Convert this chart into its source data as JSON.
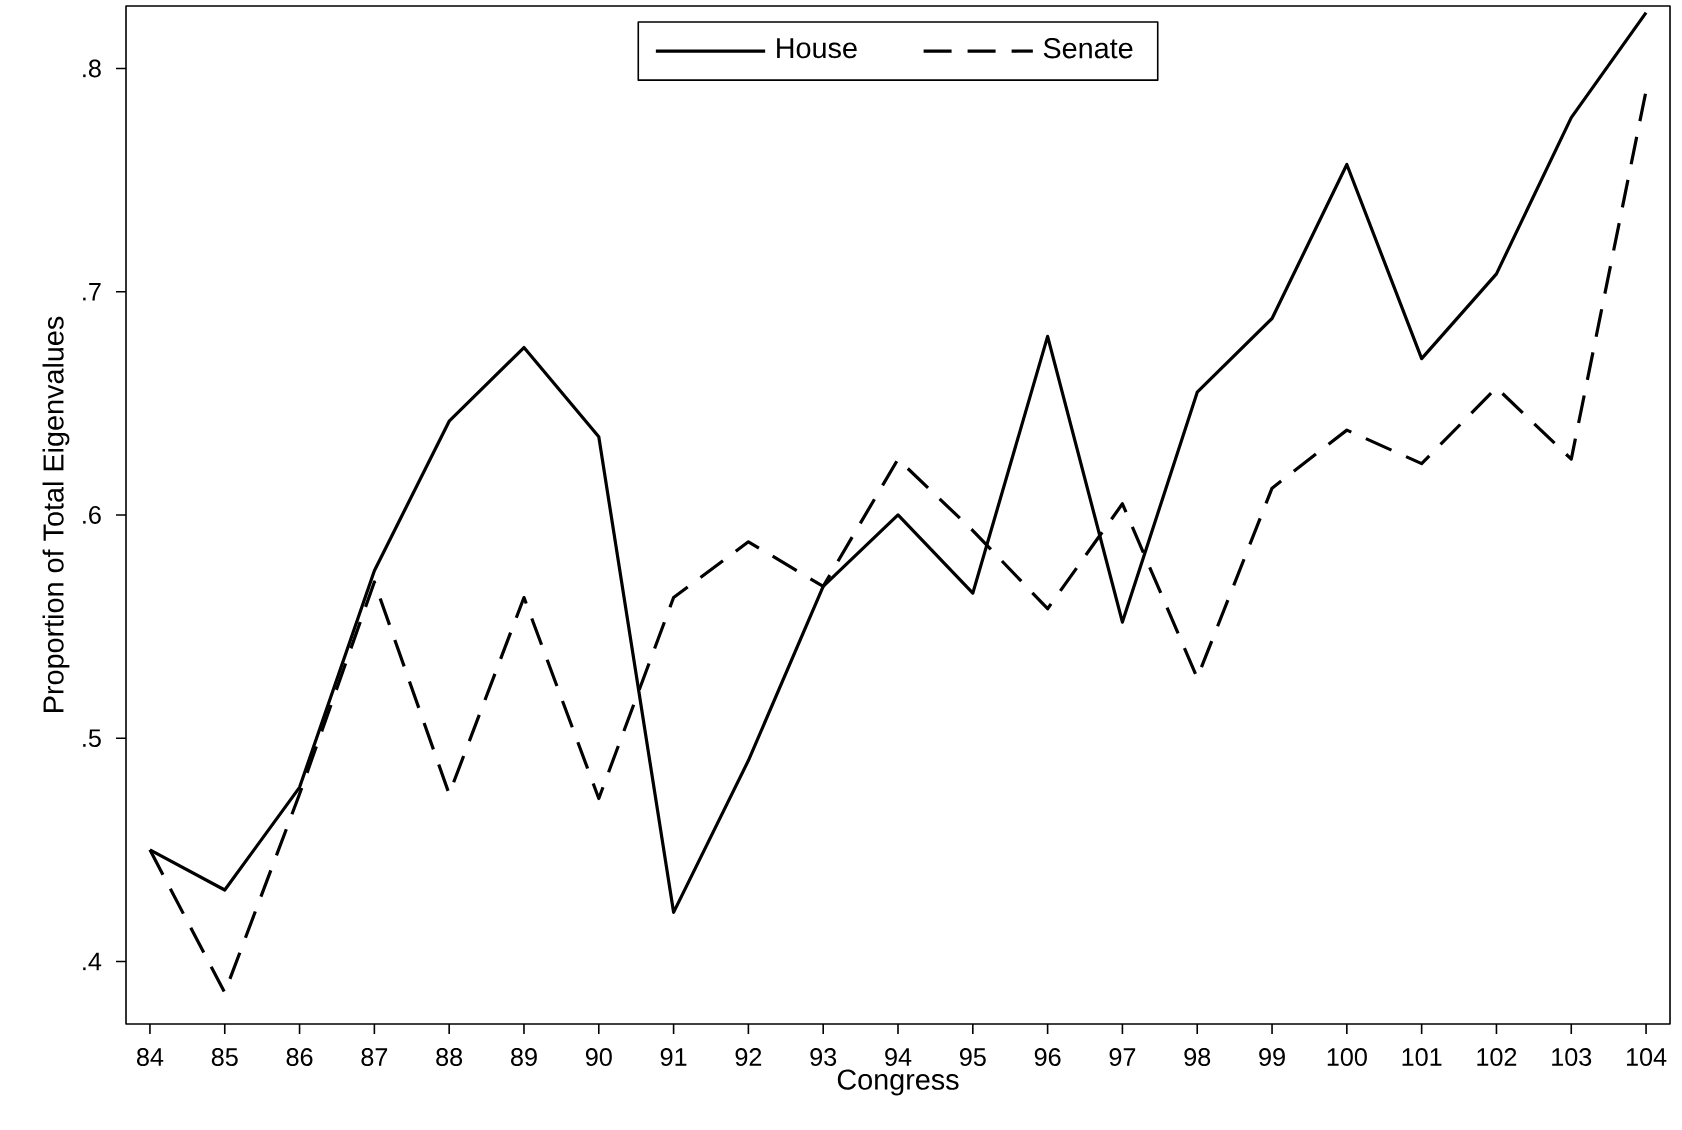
{
  "chart_data": {
    "type": "line",
    "xlabel": "Congress",
    "ylabel": "Proportion of Total Eigenvalues",
    "x": [
      84,
      85,
      86,
      87,
      88,
      89,
      90,
      91,
      92,
      93,
      94,
      95,
      96,
      97,
      98,
      99,
      100,
      101,
      102,
      103,
      104
    ],
    "series": [
      {
        "name": "House",
        "color": "#000000",
        "line_style": "solid",
        "values": [
          0.45,
          0.432,
          0.478,
          0.575,
          0.642,
          0.675,
          0.635,
          0.422,
          0.49,
          0.568,
          0.6,
          0.565,
          0.68,
          0.552,
          0.655,
          0.688,
          0.757,
          0.67,
          0.708,
          0.778,
          0.825
        ]
      },
      {
        "name": "Senate",
        "color": "#000000",
        "line_style": "dashed",
        "values": [
          0.45,
          0.386,
          0.475,
          0.57,
          0.475,
          0.563,
          0.473,
          0.563,
          0.588,
          0.568,
          0.625,
          0.593,
          0.558,
          0.605,
          0.527,
          0.612,
          0.638,
          0.623,
          0.657,
          0.625,
          0.79
        ]
      }
    ],
    "xlim": [
      83.68,
      104.32
    ],
    "ylim": [
      0.372,
      0.828
    ],
    "xticks": [
      84,
      85,
      86,
      87,
      88,
      89,
      90,
      91,
      92,
      93,
      94,
      95,
      96,
      97,
      98,
      99,
      100,
      101,
      102,
      103,
      104
    ],
    "yticks": [
      {
        "value": 0.4,
        "label": ".4"
      },
      {
        "value": 0.5,
        "label": ".5"
      },
      {
        "value": 0.6,
        "label": ".6"
      },
      {
        "value": 0.7,
        "label": ".7"
      },
      {
        "value": 0.8,
        "label": ".8"
      }
    ],
    "grid": false,
    "legend": "top",
    "marker": "none"
  }
}
